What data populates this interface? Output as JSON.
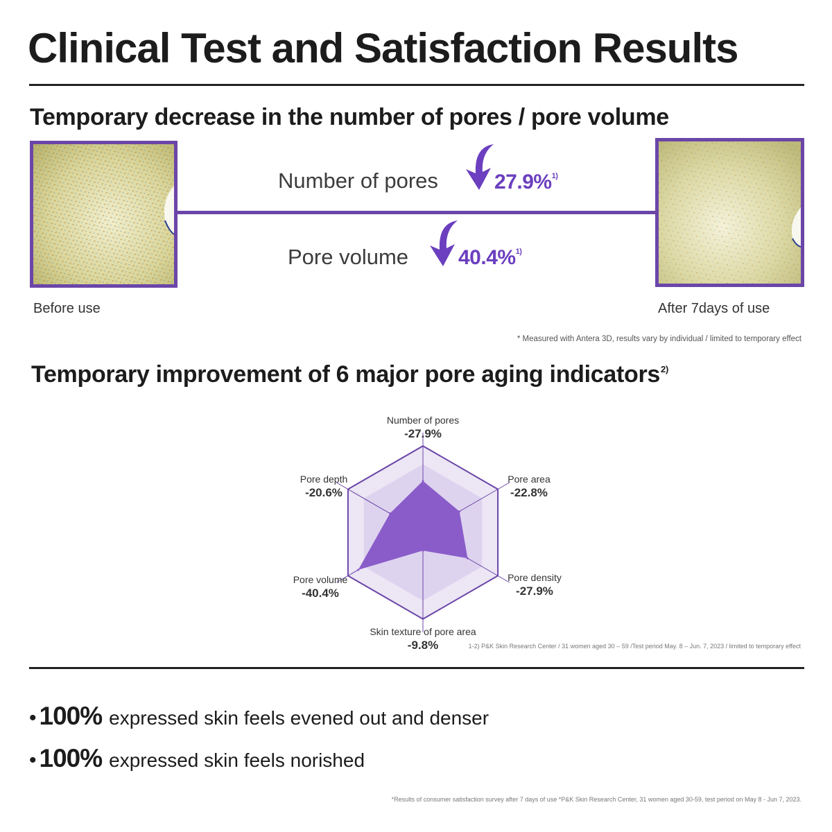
{
  "title": "Clinical Test and Satisfaction Results",
  "section1": {
    "heading": "Temporary decrease in the number of pores / pore volume",
    "metrics": [
      {
        "label": "Number of pores",
        "value": "27.9%",
        "ref": "1)"
      },
      {
        "label": "Pore volume",
        "value": "40.4%",
        "ref": "1)"
      }
    ],
    "before_label": "Before use",
    "after_label": "After 7days of use",
    "note": "* Measured with Antera 3D, results vary by individual / limited to temporary effect"
  },
  "section2": {
    "heading": "Temporary improvement of 6 major pore aging indicators",
    "heading_ref": "2)",
    "note": "1-2) P&K Skin Research Center / 31 women aged 30 – 59  /Test period May. 8 – Jun. 7, 2023 / limited to temporary effect"
  },
  "chart_data": {
    "type": "radar",
    "axes": [
      {
        "label": "Number of pores",
        "value_label": "-27.9%",
        "value": -27.9
      },
      {
        "label": "Pore area",
        "value_label": "-22.8%",
        "value": -22.8
      },
      {
        "label": "Pore density",
        "value_label": "-27.9%",
        "value": -27.9
      },
      {
        "label": "Skin texture of pore area",
        "value_label": "-9.8%",
        "value": -9.8
      },
      {
        "label": "Pore volume",
        "value_label": "-40.4%",
        "value": -40.4
      },
      {
        "label": "Pore depth",
        "value_label": "-20.6%",
        "value": -20.6
      }
    ],
    "fill_color": "#8a5cc9",
    "ring_colors": [
      "#ece6f5",
      "#ded3ef"
    ],
    "outline_color": "#6b46a8"
  },
  "satisfaction": [
    {
      "percent": "100%",
      "text": "expressed skin feels evened out and denser"
    },
    {
      "percent": "100%",
      "text": "expressed skin feels norished"
    }
  ],
  "footnote": "*Results of consumer satisfaction survey after 7 days of use  *P&K Skin Research Center, 31 women aged 30-59, test period on May 8 - Jun 7, 2023.",
  "colors": {
    "accent": "#6b46a8",
    "value_purple": "#6b3fbf"
  }
}
